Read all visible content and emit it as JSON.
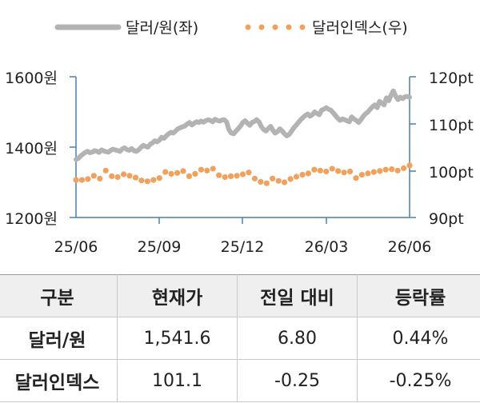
{
  "legend": {
    "series_left": "달러/원(좌)",
    "series_right": "달러인덱스(우)"
  },
  "chart_data": {
    "type": "line",
    "x_ticks": [
      "25/06",
      "25/09",
      "25/12",
      "26/03",
      "26/06"
    ],
    "y_left": {
      "ticks": [
        "1600원",
        "1400원",
        "1200원"
      ],
      "range": [
        1200,
        1600
      ]
    },
    "y_right": {
      "ticks": [
        "120pt",
        "110pt",
        "100pt",
        "90pt"
      ],
      "range": [
        90,
        120
      ]
    },
    "series": [
      {
        "name": "달러/원(좌)",
        "axis": "left",
        "style": "line",
        "color": "#b3b3b3",
        "values": [
          1365,
          1368,
          1375,
          1380,
          1385,
          1388,
          1384,
          1386,
          1390,
          1388,
          1385,
          1392,
          1389,
          1387,
          1386,
          1391,
          1394,
          1392,
          1390,
          1388,
          1395,
          1398,
          1393,
          1391,
          1396,
          1390,
          1388,
          1392,
          1399,
          1405,
          1402,
          1400,
          1408,
          1412,
          1418,
          1415,
          1420,
          1428,
          1425,
          1432,
          1438,
          1442,
          1440,
          1446,
          1452,
          1455,
          1458,
          1460,
          1466,
          1470,
          1463,
          1468,
          1472,
          1470,
          1474,
          1471,
          1475,
          1478,
          1476,
          1472,
          1479,
          1476,
          1474,
          1477,
          1478,
          1472,
          1450,
          1440,
          1438,
          1445,
          1452,
          1460,
          1470,
          1475,
          1468,
          1462,
          1470,
          1473,
          1478,
          1472,
          1458,
          1450,
          1446,
          1453,
          1459,
          1448,
          1440,
          1444,
          1452,
          1446,
          1438,
          1432,
          1436,
          1445,
          1455,
          1462,
          1470,
          1478,
          1484,
          1490,
          1494,
          1488,
          1492,
          1500,
          1496,
          1492,
          1505,
          1508,
          1512,
          1508,
          1505,
          1498,
          1490,
          1482,
          1476,
          1480,
          1478,
          1475,
          1472,
          1486,
          1480,
          1476,
          1470,
          1478,
          1488,
          1495,
          1500,
          1508,
          1515,
          1520,
          1512,
          1530,
          1525,
          1520,
          1540,
          1532,
          1548,
          1560,
          1545,
          1535,
          1542,
          1538,
          1543,
          1544,
          1541.6
        ]
      },
      {
        "name": "달러인덱스(우)",
        "axis": "right",
        "style": "dots",
        "color": "#f0a15c",
        "values": [
          98.0,
          98.0,
          98.2,
          98.9,
          98.3,
          100.0,
          98.8,
          98.6,
          99.2,
          98.9,
          98.5,
          97.9,
          97.7,
          98.0,
          98.4,
          99.7,
          99.3,
          99.5,
          99.9,
          98.8,
          99.3,
          100.2,
          100.0,
          100.4,
          99.0,
          98.6,
          98.8,
          98.9,
          99.2,
          99.6,
          98.3,
          97.6,
          97.3,
          98.3,
          97.8,
          97.5,
          98.2,
          98.7,
          99.1,
          99.4,
          100.2,
          100.0,
          99.8,
          100.4,
          99.9,
          99.6,
          99.8,
          98.4,
          99.1,
          99.4,
          99.7,
          99.9,
          100.2,
          100.3,
          100.0,
          100.5,
          101.1
        ]
      }
    ]
  },
  "table": {
    "headers": [
      "구분",
      "현재가",
      "전일 대비",
      "등락률"
    ],
    "rows": [
      {
        "label": "달러/원",
        "price": "1,541.6",
        "change": "6.80",
        "rate": "0.44%"
      },
      {
        "label": "달러인덱스",
        "price": "101.1",
        "change": "-0.25",
        "rate": "-0.25%"
      }
    ]
  }
}
